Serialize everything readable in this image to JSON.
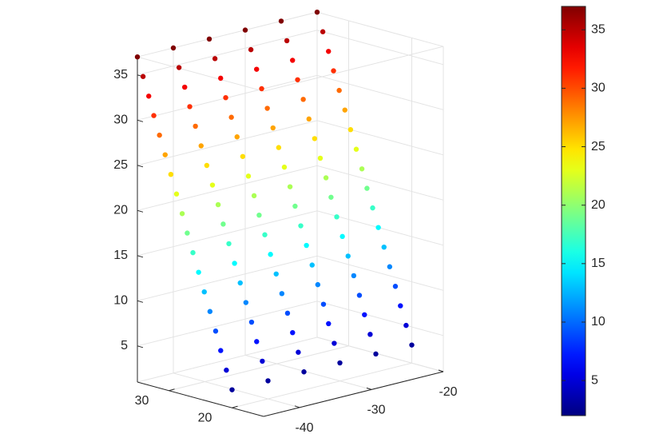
{
  "chart_data": {
    "type": "scatter3",
    "colormap": "jet",
    "grid": true,
    "xlim": [
      -45,
      -20
    ],
    "xticks": [
      -40,
      -30,
      -20
    ],
    "ylim": [
      15,
      35
    ],
    "yticks": [
      20,
      30
    ],
    "zlim": [
      1,
      37
    ],
    "zticks": [
      5,
      10,
      15,
      20,
      25,
      30,
      35
    ],
    "clim": [
      2,
      37
    ],
    "cticks": [
      5,
      10,
      15,
      20,
      25,
      30,
      35
    ],
    "x": [
      -45,
      -40,
      -35,
      -30,
      -25,
      -20,
      -45,
      -40,
      -35,
      -30,
      -25,
      -20,
      -45,
      -40,
      -35,
      -30,
      -25,
      -20,
      -45,
      -40,
      -35,
      -30,
      -25,
      -20,
      -45,
      -40,
      -35,
      -30,
      -25,
      -20,
      -45,
      -40,
      -35,
      -30,
      -25,
      -20,
      -45,
      -40,
      -35,
      -30,
      -25,
      -20,
      -45,
      -40,
      -35,
      -30,
      -25,
      -20,
      -45,
      -40,
      -35,
      -30,
      -25,
      -20,
      -45,
      -40,
      -35,
      -30,
      -25,
      -20,
      -45,
      -40,
      -35,
      -30,
      -25,
      -20,
      -45,
      -40,
      -35,
      -30,
      -25,
      -20,
      -45,
      -40,
      -35,
      -30,
      -25,
      -20,
      -45,
      -40,
      -35,
      -30,
      -25,
      -20,
      -45,
      -40,
      -35,
      -30,
      -25,
      -20,
      -45,
      -40,
      -35,
      -30,
      -25,
      -20,
      -45,
      -40,
      -35,
      -30,
      -25,
      -20,
      -45,
      -40,
      -35,
      -30,
      -25,
      -20
    ],
    "y": [
      20,
      20,
      20,
      20,
      20,
      20,
      20.9,
      20.9,
      20.9,
      20.9,
      20.9,
      20.9,
      21.8,
      21.8,
      21.8,
      21.8,
      21.8,
      21.8,
      22.6,
      22.6,
      22.6,
      22.6,
      22.6,
      22.6,
      23.5,
      23.5,
      23.5,
      23.5,
      23.5,
      23.5,
      24.4,
      24.4,
      24.4,
      24.4,
      24.4,
      24.4,
      25.3,
      25.3,
      25.3,
      25.3,
      25.3,
      25.3,
      26.2,
      26.2,
      26.2,
      26.2,
      26.2,
      26.2,
      27.1,
      27.1,
      27.1,
      27.1,
      27.1,
      27.1,
      27.9,
      27.9,
      27.9,
      27.9,
      27.9,
      27.9,
      28.8,
      28.8,
      28.8,
      28.8,
      28.8,
      28.8,
      29.7,
      29.7,
      29.7,
      29.7,
      29.7,
      29.7,
      30.6,
      30.6,
      30.6,
      30.6,
      30.6,
      30.6,
      31.5,
      31.5,
      31.5,
      31.5,
      31.5,
      31.5,
      32.4,
      32.4,
      32.4,
      32.4,
      32.4,
      32.4,
      33.2,
      33.2,
      33.2,
      33.2,
      33.2,
      33.2,
      34.1,
      34.1,
      34.1,
      34.1,
      34.1,
      34.1,
      35,
      35,
      35,
      35,
      35,
      35
    ],
    "z": [
      3,
      3,
      3,
      3,
      3,
      3,
      5,
      5,
      5,
      5,
      5,
      5,
      7,
      7,
      7,
      7,
      7,
      7,
      9,
      9,
      9,
      9,
      9,
      9,
      11,
      11,
      11,
      11,
      11,
      11,
      13,
      13,
      13,
      13,
      13,
      13,
      15,
      15,
      15,
      15,
      15,
      15,
      17,
      17,
      17,
      17,
      17,
      17,
      19,
      19,
      19,
      19,
      19,
      19,
      21,
      21,
      21,
      21,
      21,
      21,
      23,
      23,
      23,
      23,
      23,
      23,
      25,
      25,
      25,
      25,
      25,
      25,
      27,
      27,
      27,
      27,
      27,
      27,
      29,
      29,
      29,
      29,
      29,
      29,
      31,
      31,
      31,
      31,
      31,
      31,
      33,
      33,
      33,
      33,
      33,
      33,
      35,
      35,
      35,
      35,
      35,
      35,
      37,
      37,
      37,
      37,
      37,
      37
    ]
  }
}
